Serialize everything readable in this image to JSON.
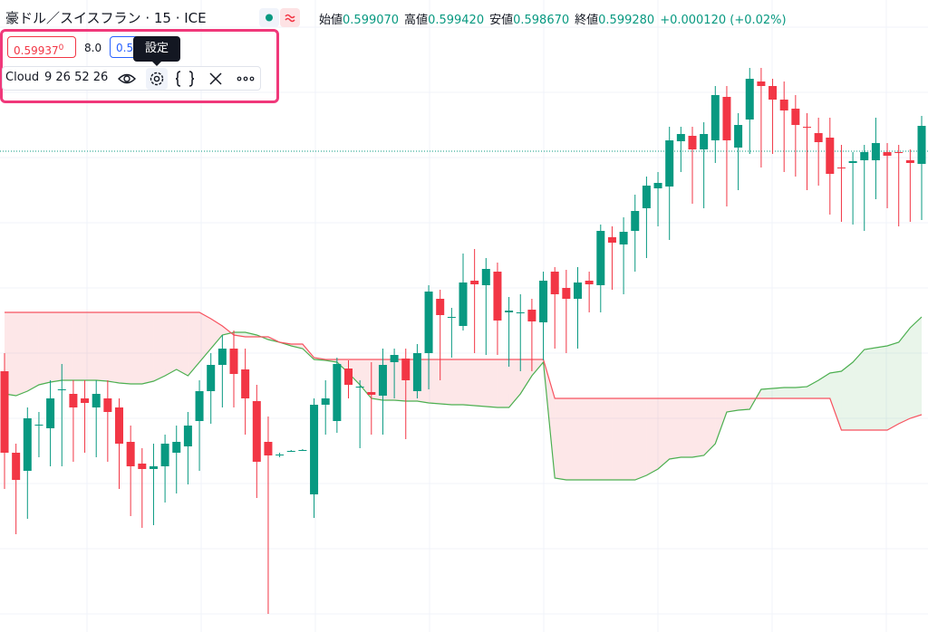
{
  "header": {
    "symbol": "豪ドル／スイスフラン · 15 · ICE",
    "ohlc": [
      {
        "label": "始値",
        "value": "0.599070"
      },
      {
        "label": "高値",
        "value": "0.599420"
      },
      {
        "label": "安値",
        "value": "0.598670"
      },
      {
        "label": "終値",
        "value": "0.599280"
      }
    ],
    "change": "+0.000120 (+0.02%)"
  },
  "legend": {
    "sell": "0.59937",
    "sell_sup": "0",
    "spread": "8.0",
    "buy": "0.5",
    "tooltip": "設定",
    "indicator": "Cloud",
    "params": "9 26 52 26"
  },
  "chart_data": {
    "type": "candlestick",
    "up_color": "#089981",
    "down_color": "#f23645",
    "ylim": [
      0.59651,
      0.6
    ],
    "price_line": 0.599165,
    "open": [
      0.59795,
      0.5975,
      0.5974,
      0.59765,
      0.597635,
      0.597845,
      0.597825,
      0.5978,
      0.59775,
      0.5978,
      0.59775,
      0.59756,
      0.59744,
      0.59741,
      0.597425,
      0.5975,
      0.597535,
      0.597675,
      0.59784,
      0.597985,
      0.598075,
      0.59796,
      0.597785,
      0.59756,
      0.597485,
      0.59751,
      0.597515,
      0.59727,
      0.597765,
      0.597675,
      0.597965,
      0.597865,
      0.597835,
      0.597815,
      0.598,
      0.59802,
      0.59784,
      0.59805,
      0.59835,
      0.59825,
      0.5982,
      0.59845,
      0.598425,
      0.5985,
      0.598275,
      0.598275,
      0.59829,
      0.59822,
      0.5985,
      0.59841,
      0.59835,
      0.59845,
      0.598425,
      0.59869,
      0.59865,
      0.598725,
      0.59885,
      0.59896,
      0.59897,
      0.59922,
      0.59925,
      0.599175,
      0.599225,
      0.599465,
      0.599185,
      0.59934,
      0.59955,
      0.599525,
      0.59945,
      0.5994,
      0.5993,
      0.599265,
      0.59924,
      0.599075,
      0.5991,
      0.599115,
      0.599115,
      0.59916,
      0.59916,
      0.599115,
      0.599095
    ],
    "high": [
      0.59805,
      0.59755,
      0.59775,
      0.597725,
      0.5979,
      0.59799,
      0.5979,
      0.5979,
      0.5979,
      0.5979,
      0.5978,
      0.59765,
      0.597525,
      0.59755,
      0.5976,
      0.59765,
      0.597725,
      0.5979,
      0.59805,
      0.59815,
      0.598175,
      0.598075,
      0.597875,
      0.5977,
      0.5975,
      0.597515,
      0.59752,
      0.5978,
      0.5979,
      0.598025,
      0.59801,
      0.5979,
      0.598,
      0.598075,
      0.598075,
      0.598075,
      0.5981,
      0.598425,
      0.5984,
      0.5983,
      0.5986,
      0.598625,
      0.598575,
      0.59855,
      0.59836,
      0.598375,
      0.59835,
      0.5985,
      0.598525,
      0.59851,
      0.598525,
      0.5985,
      0.59876,
      0.59875,
      0.5988,
      0.598925,
      0.599025,
      0.59905,
      0.5993,
      0.5993,
      0.5993,
      0.599325,
      0.599525,
      0.599525,
      0.599375,
      0.599625,
      0.599625,
      0.599565,
      0.59955,
      0.599475,
      0.599375,
      0.59935,
      0.59935,
      0.5992,
      0.59916,
      0.5992,
      0.59935,
      0.59921,
      0.5992,
      0.599175,
      0.59936
    ],
    "low": [
      0.5973,
      0.59705,
      0.597135,
      0.597475,
      0.597425,
      0.597425,
      0.59745,
      0.5975,
      0.597475,
      0.59745,
      0.5973,
      0.59715,
      0.597085,
      0.5971,
      0.597225,
      0.597275,
      0.597325,
      0.5974,
      0.59766,
      0.59775,
      0.59775,
      0.5976,
      0.59725,
      0.59661,
      0.597475,
      0.597505,
      0.59751,
      0.59714,
      0.5976,
      0.59761,
      0.5978,
      0.597525,
      0.5976,
      0.5976,
      0.5978,
      0.597575,
      0.5978,
      0.59785,
      0.5979,
      0.598025,
      0.598175,
      0.59805,
      0.59804,
      0.59804,
      0.597975,
      0.59795,
      0.59795,
      0.59801,
      0.598075,
      0.59805,
      0.598075,
      0.598275,
      0.598275,
      0.5984,
      0.598375,
      0.5985,
      0.598575,
      0.59875,
      0.598675,
      0.59905,
      0.598875,
      0.59885,
      0.5991,
      0.59886,
      0.59895,
      0.59915,
      0.599075,
      0.59915,
      0.59905,
      0.599025,
      0.59895,
      0.598975,
      0.598815,
      0.598775,
      0.59876,
      0.598725,
      0.5989,
      0.59885,
      0.59875,
      0.598775,
      0.598785
    ],
    "close": [
      0.5975,
      0.59735,
      0.59769,
      0.597655,
      0.5978,
      0.59785,
      0.59775,
      0.597775,
      0.597825,
      0.597725,
      0.59755,
      0.597425,
      0.59741,
      0.597425,
      0.59755,
      0.59756,
      0.59765,
      0.59784,
      0.597985,
      0.598075,
      0.597935,
      0.5978,
      0.59745,
      0.597485,
      0.59749,
      0.59751,
      0.597515,
      0.597765,
      0.5978,
      0.59799,
      0.597875,
      0.597865,
      0.59782,
      0.597985,
      0.59804,
      0.5979,
      0.59805,
      0.59839,
      0.59826,
      0.59825,
      0.59844,
      0.59843,
      0.598515,
      0.59823,
      0.598285,
      0.598275,
      0.598225,
      0.59845,
      0.598375,
      0.59835,
      0.59844,
      0.59843,
      0.598725,
      0.59866,
      0.59872,
      0.598835,
      0.598975,
      0.59899,
      0.599225,
      0.59926,
      0.599175,
      0.59926,
      0.599475,
      0.599225,
      0.59931,
      0.599565,
      0.599525,
      0.59945,
      0.59939,
      0.59931,
      0.599295,
      0.599215,
      0.59904,
      0.59907,
      0.59911,
      0.59916,
      0.59921,
      0.59914,
      0.599155,
      0.5991,
      0.599305
    ],
    "lead_a": {
      "color": "#4caf50",
      "values": [
        0.597825,
        0.597815,
        0.59784,
        0.597875,
        0.59789,
        0.5979,
        0.5979,
        0.5979,
        0.5979,
        0.597895,
        0.597885,
        0.59788,
        0.59788,
        0.597895,
        0.597925,
        0.59796,
        0.597925,
        0.598,
        0.598075,
        0.59815,
        0.598165,
        0.598165,
        0.59815,
        0.598125,
        0.59811,
        0.59809,
        0.598075,
        0.598015,
        0.59801,
        0.598,
        0.59794,
        0.597875,
        0.5978,
        0.59779,
        0.59779,
        0.597785,
        0.597785,
        0.597775,
        0.59777,
        0.597765,
        0.597765,
        0.59776,
        0.597755,
        0.59775,
        0.59775,
        0.597825,
        0.597925,
        0.598,
        0.59736,
        0.59735,
        0.59735,
        0.59735,
        0.59735,
        0.59735,
        0.59735,
        0.59735,
        0.597375,
        0.59741,
        0.597465,
        0.597475,
        0.597475,
        0.597485,
        0.59755,
        0.597725,
        0.597735,
        0.59774,
        0.59785,
        0.597855,
        0.59786,
        0.59786,
        0.597865,
        0.5979,
        0.59794,
        0.59795,
        0.598,
        0.59807,
        0.59808,
        0.59809,
        0.59811,
        0.59819,
        0.59825
      ]
    },
    "lead_b": {
      "color": "#f7525f",
      "values": [
        0.598275,
        0.598275,
        0.598275,
        0.598275,
        0.598275,
        0.598275,
        0.598275,
        0.598275,
        0.598275,
        0.598275,
        0.598275,
        0.598275,
        0.598275,
        0.598275,
        0.598275,
        0.598275,
        0.598275,
        0.598275,
        0.59824,
        0.5982,
        0.59815,
        0.59814,
        0.59814,
        0.59814,
        0.59811,
        0.5981,
        0.5981,
        0.598025,
        0.598015,
        0.598015,
        0.598015,
        0.598015,
        0.598015,
        0.598015,
        0.598015,
        0.598015,
        0.598015,
        0.598015,
        0.598015,
        0.598015,
        0.598015,
        0.598015,
        0.598015,
        0.598015,
        0.598015,
        0.598015,
        0.598015,
        0.598015,
        0.5978,
        0.5978,
        0.5978,
        0.5978,
        0.5978,
        0.5978,
        0.5978,
        0.5978,
        0.5978,
        0.5978,
        0.5978,
        0.5978,
        0.5978,
        0.5978,
        0.5978,
        0.5978,
        0.5978,
        0.5978,
        0.5978,
        0.5978,
        0.5978,
        0.5978,
        0.5978,
        0.5978,
        0.5978,
        0.597625,
        0.597625,
        0.597625,
        0.597625,
        0.597625,
        0.59766,
        0.59769,
        0.59771
      ]
    }
  }
}
